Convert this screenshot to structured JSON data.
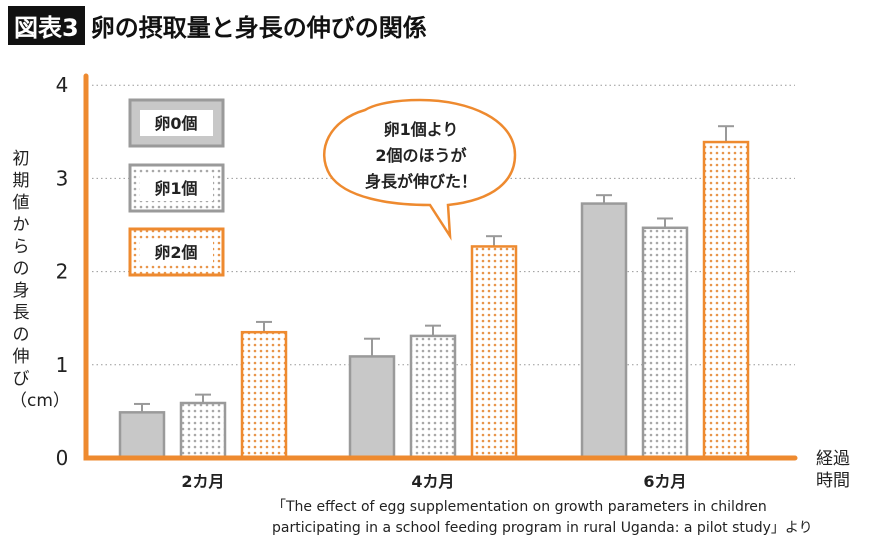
{
  "header": {
    "badge": "図表3",
    "title": "卵の摂取量と身長の伸びの関係"
  },
  "callout": {
    "lines": [
      "卵1個より",
      "2個のほうが",
      "身長が伸びた！"
    ]
  },
  "source": {
    "lines": [
      "「The effect of egg supplementation on growth  parameters in children",
      "participating in a school feeding program in rural Uganda: a pilot study」より"
    ]
  },
  "colors": {
    "accent": "#ee8a2f",
    "gray": "#9a9a9a",
    "grayFill": "#c8c8c8"
  },
  "chart_data": {
    "type": "bar",
    "title": "卵の摂取量と身長の伸びの関係",
    "ylabel": "初期値からの身長の伸び（cm）",
    "xlabel": "経過時間",
    "ylim": [
      0,
      4
    ],
    "yticks": [
      "0",
      "1",
      "2",
      "3",
      "4"
    ],
    "grid": "dotted horizontal",
    "legend_placement": "top-left",
    "categories": [
      "2カ月",
      "4カ月",
      "6カ月"
    ],
    "series": [
      {
        "name": "卵0個",
        "values": [
          0.49,
          1.09,
          2.73
        ],
        "error_upper": [
          0.58,
          1.28,
          2.82
        ],
        "style": "solid gray"
      },
      {
        "name": "卵1個",
        "values": [
          0.59,
          1.31,
          2.47
        ],
        "error_upper": [
          0.68,
          1.42,
          2.57
        ],
        "style": "gray dots"
      },
      {
        "name": "卵2個",
        "values": [
          1.35,
          2.27,
          3.39
        ],
        "error_upper": [
          1.46,
          2.38,
          3.56
        ],
        "style": "orange dots"
      }
    ]
  }
}
